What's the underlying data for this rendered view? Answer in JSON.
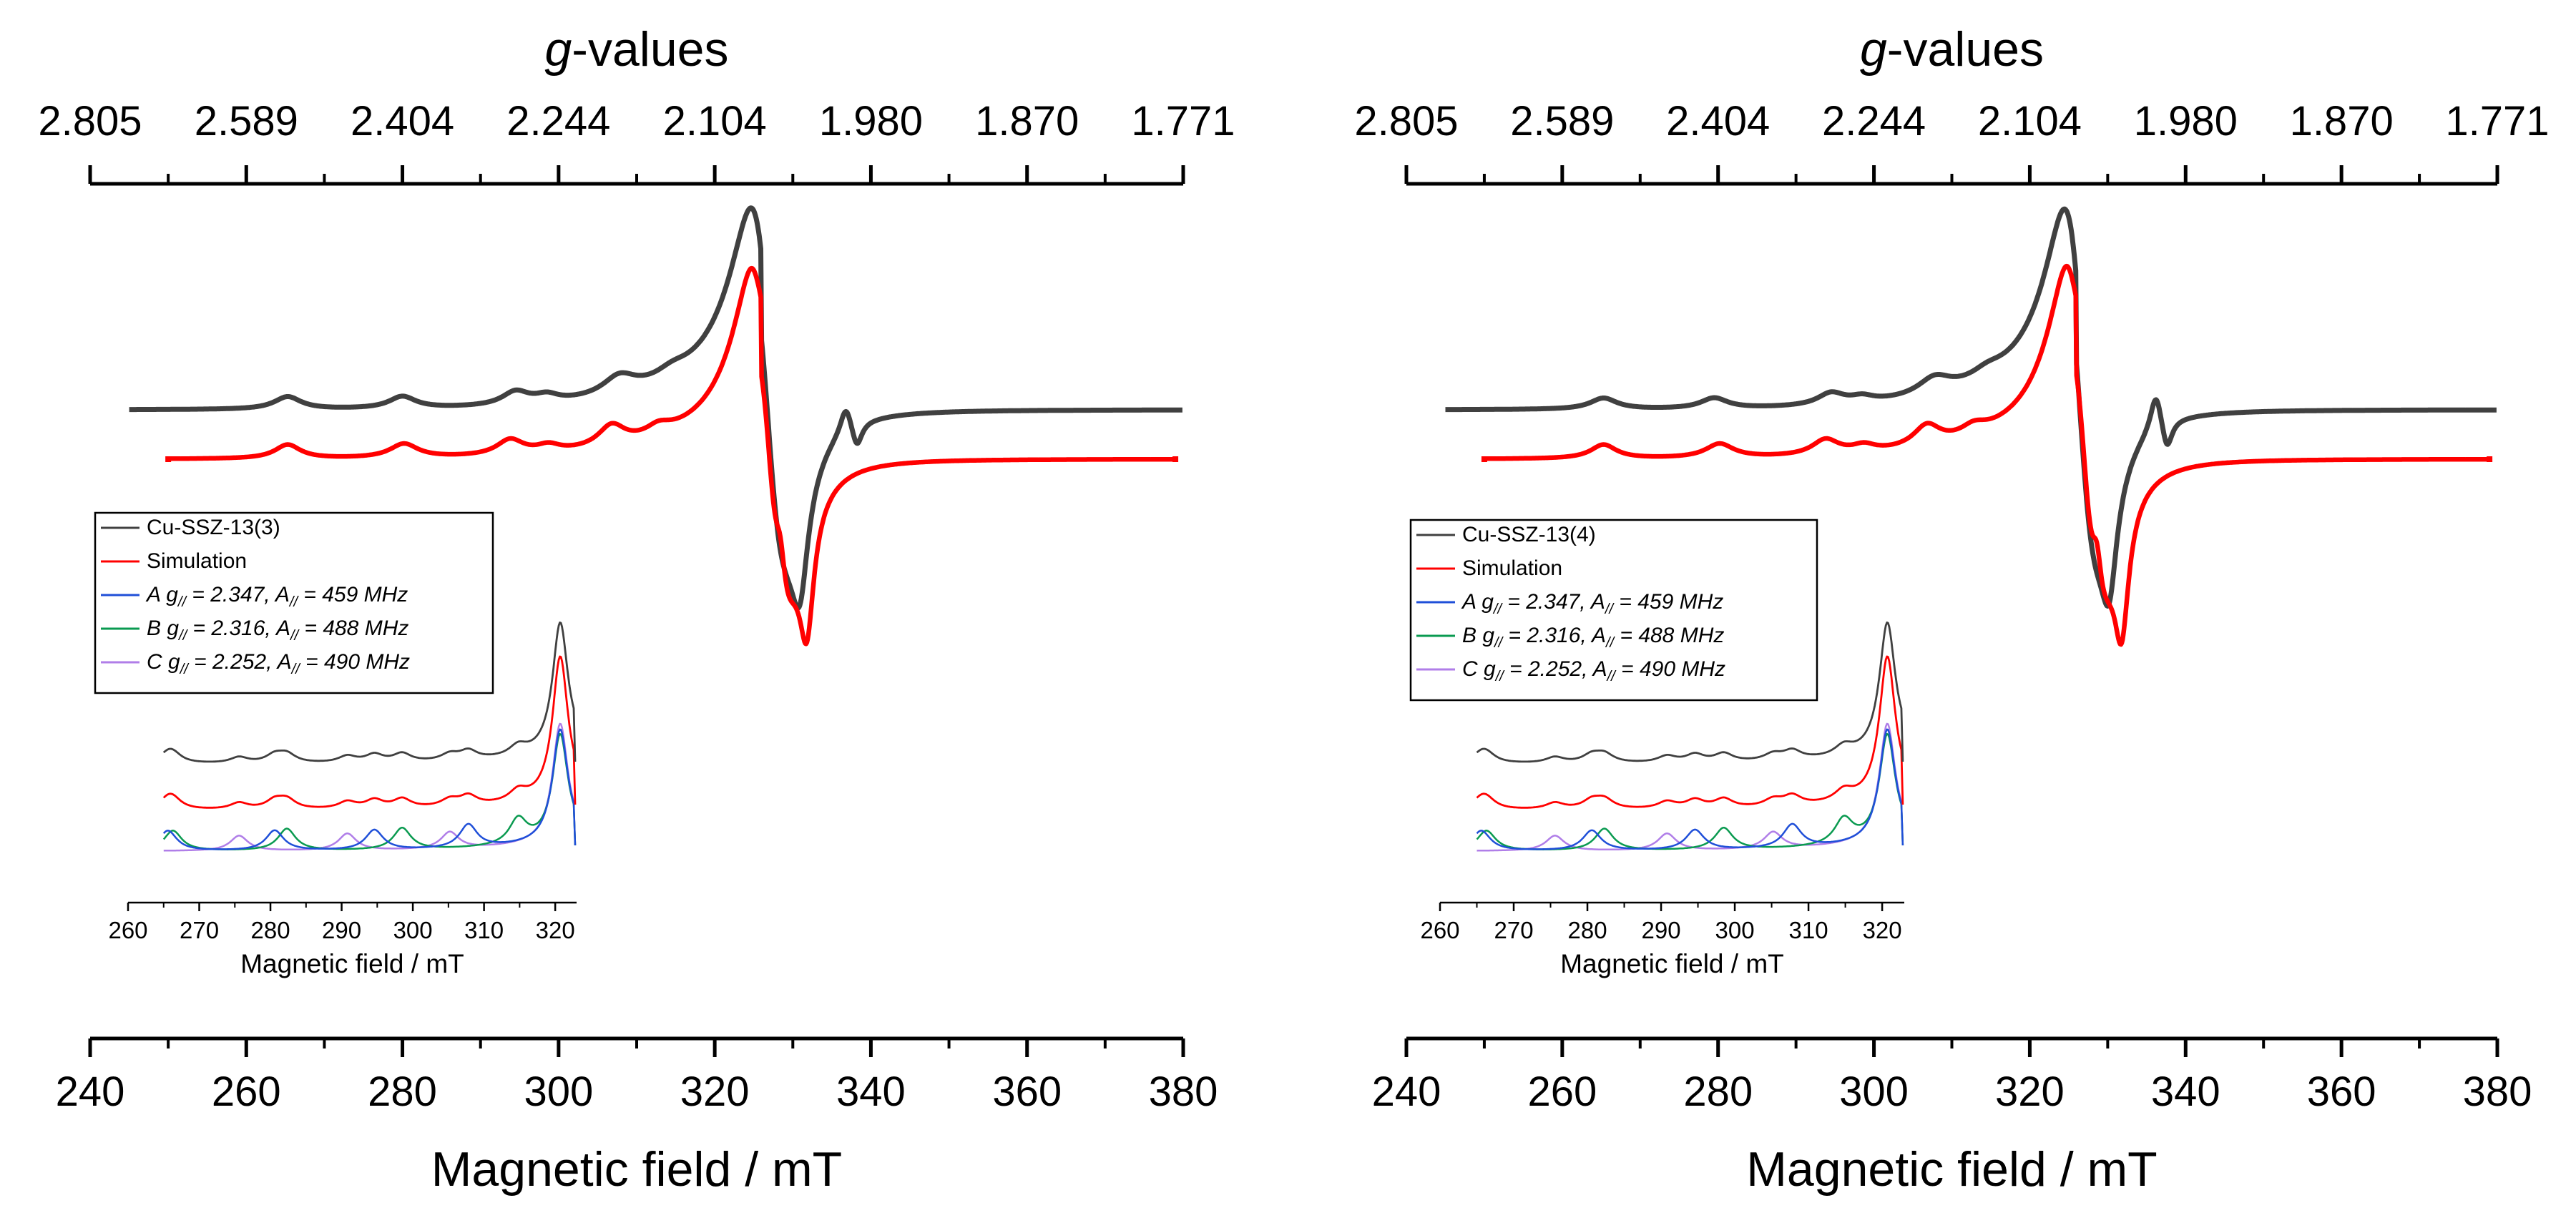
{
  "chart_data": [
    {
      "type": "line",
      "panel": "left",
      "title_top": "g-values",
      "xlabel": "Magnetic field / mT",
      "xlim": [
        240,
        380
      ],
      "x_ticks": [
        "240",
        "260",
        "280",
        "300",
        "320",
        "340",
        "360",
        "380"
      ],
      "top_ticks": [
        "2.805",
        "2.589",
        "2.404",
        "2.244",
        "2.104",
        "1.980",
        "1.870",
        "1.771"
      ],
      "series": [
        {
          "name": "Cu-SSZ-13(3)",
          "color": "#404040",
          "baseline": 0.72,
          "dip_field": 330.7,
          "second_dip": 337.6
        },
        {
          "name": "Simulation",
          "color": "#ff0000",
          "baseline": 0.63,
          "dip_field": 331.6,
          "second_dip": 328.6
        }
      ],
      "inset": {
        "xlabel": "Magnetic field / mT",
        "xlim": [
          260,
          323
        ],
        "x_ticks": [
          "260",
          "270",
          "280",
          "290",
          "300",
          "310",
          "320"
        ],
        "legend": [
          {
            "text": "Cu-SSZ-13(3)",
            "color": "#404040"
          },
          {
            "text": "Simulation",
            "color": "#ff0000"
          },
          {
            "prefix": "A g",
            "sub": "//",
            "mid": " = 2.347, A",
            "sub2": "//",
            "suffix": " = 459 MHz",
            "color": "#1f4fd8"
          },
          {
            "prefix": "B g",
            "sub": "//",
            "mid": " = 2.316, A",
            "sub2": "//",
            "suffix": " = 488 MHz",
            "color": "#0a9a50"
          },
          {
            "prefix": "C g",
            "sub": "//",
            "mid": " = 2.252, A",
            "sub2": "//",
            "suffix": " = 490 MHz",
            "color": "#b07ee8"
          }
        ]
      }
    },
    {
      "type": "line",
      "panel": "right",
      "title_top": "g-values",
      "xlabel": "Magnetic field / mT",
      "xlim": [
        240,
        380
      ],
      "x_ticks": [
        "240",
        "260",
        "280",
        "300",
        "320",
        "340",
        "360",
        "380"
      ],
      "top_ticks": [
        "2.805",
        "2.589",
        "2.404",
        "2.244",
        "2.104",
        "1.980",
        "1.870",
        "1.771"
      ],
      "series": [
        {
          "name": "Cu-SSZ-13(4)",
          "color": "#404040",
          "baseline": 0.72,
          "dip_field": 330.0,
          "second_dip": 336.8
        },
        {
          "name": "Simulation",
          "color": "#ff0000",
          "baseline": 0.63,
          "dip_field": 331.6,
          "second_dip": 328.6
        }
      ],
      "inset": {
        "xlabel": "Magnetic field / mT",
        "xlim": [
          260,
          323
        ],
        "x_ticks": [
          "260",
          "270",
          "280",
          "290",
          "300",
          "310",
          "320"
        ],
        "legend": [
          {
            "text": "Cu-SSZ-13(4)",
            "color": "#404040"
          },
          {
            "text": "Simulation",
            "color": "#ff0000"
          },
          {
            "prefix": "A g",
            "sub": "//",
            "mid": " = 2.347, A",
            "sub2": "//",
            "suffix": " = 459 MHz",
            "color": "#1f4fd8"
          },
          {
            "prefix": "B g",
            "sub": "//",
            "mid": " = 2.316, A",
            "sub2": "//",
            "suffix": " = 488 MHz",
            "color": "#0a9a50"
          },
          {
            "prefix": "C g",
            "sub": "//",
            "mid": " = 2.252, A",
            "sub2": "//",
            "suffix": " = 490 MHz",
            "color": "#b07ee8"
          }
        ]
      }
    }
  ]
}
